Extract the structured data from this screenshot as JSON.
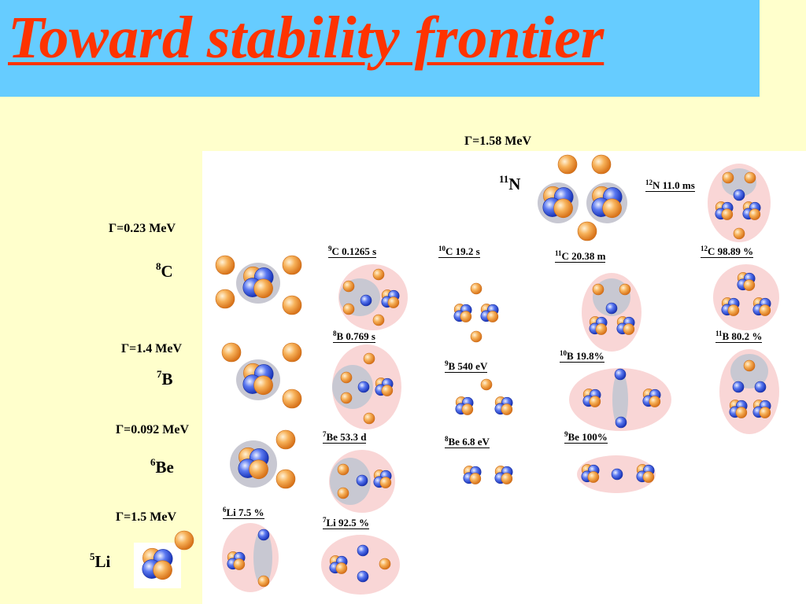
{
  "title": "Toward stability frontier",
  "colors": {
    "title_text": "#ff3300",
    "title_background": "#66ccff",
    "page_background": "#ffffcc",
    "proton": "#f29a33",
    "neutron": "#3355dd",
    "cluster_halo": "#c8c8d2",
    "nucleus_envelope": "#f9d6d6"
  },
  "unbound_nuclei": [
    {
      "id": "8C",
      "mass": "8",
      "symbol": "C",
      "width": "Γ=0.23 MeV"
    },
    {
      "id": "7B",
      "mass": "7",
      "symbol": "B",
      "width": "Γ=1.4 MeV"
    },
    {
      "id": "6Be",
      "mass": "6",
      "symbol": "Be",
      "width": "Γ=0.092 MeV"
    },
    {
      "id": "5Li",
      "mass": "5",
      "symbol": "Li",
      "width": "Γ=1.5 MeV"
    },
    {
      "id": "11N",
      "mass": "11",
      "symbol": "N",
      "width": "Γ=1.58 MeV"
    }
  ],
  "states": [
    {
      "id": "12N",
      "mass": "12",
      "text": "N 11.0 ms"
    },
    {
      "id": "9C",
      "mass": "9",
      "text": "C 0.1265 s"
    },
    {
      "id": "10C",
      "mass": "10",
      "text": "C 19.2 s"
    },
    {
      "id": "11C",
      "mass": "11",
      "text": "C 20.38 m"
    },
    {
      "id": "12C",
      "mass": "12",
      "text": "C 98.89 %"
    },
    {
      "id": "8B",
      "mass": "8",
      "text": "B 0.769 s"
    },
    {
      "id": "11B",
      "mass": "11",
      "text": "B 80.2 %"
    },
    {
      "id": "9B",
      "mass": "9",
      "text": "B 540 eV"
    },
    {
      "id": "10B",
      "mass": "10",
      "text": "B 19.8%"
    },
    {
      "id": "7Be",
      "mass": "7",
      "text": "Be 53.3 d"
    },
    {
      "id": "8Be",
      "mass": "8",
      "text": "Be 6.8 eV"
    },
    {
      "id": "9Be",
      "mass": "9",
      "text": "Be 100%"
    },
    {
      "id": "6Li",
      "mass": "6",
      "text": "Li 7.5 %"
    },
    {
      "id": "7Li",
      "mass": "7",
      "text": "Li 92.5 %"
    }
  ]
}
